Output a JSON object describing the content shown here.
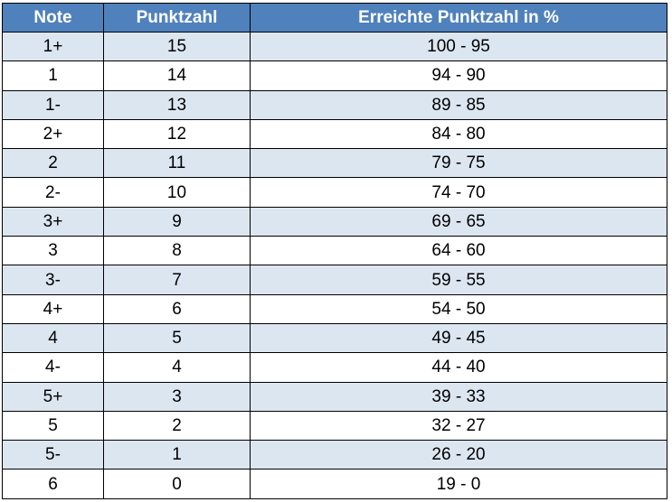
{
  "table": {
    "headers": [
      "Note",
      "Punktzahl",
      "Erreichte Punktzahl in %"
    ],
    "rows": [
      [
        "1+",
        "15",
        "100 - 95"
      ],
      [
        "1",
        "14",
        "94 - 90"
      ],
      [
        "1-",
        "13",
        "89 - 85"
      ],
      [
        "2+",
        "12",
        "84 - 80"
      ],
      [
        "2",
        "11",
        "79 - 75"
      ],
      [
        "2-",
        "10",
        "74 - 70"
      ],
      [
        "3+",
        "9",
        "69 - 65"
      ],
      [
        "3",
        "8",
        "64 - 60"
      ],
      [
        "3-",
        "7",
        "59 - 55"
      ],
      [
        "4+",
        "6",
        "54 - 50"
      ],
      [
        "4",
        "5",
        "49 - 45"
      ],
      [
        "4-",
        "4",
        "44 - 40"
      ],
      [
        "5+",
        "3",
        "39 - 33"
      ],
      [
        "5",
        "2",
        "32 - 27"
      ],
      [
        "5-",
        "1",
        "26 - 20"
      ],
      [
        "6",
        "0",
        "19 - 0"
      ]
    ]
  },
  "colors": {
    "header_background": "#4f81bd",
    "header_text": "#ffffff",
    "band_row": "#dce6f1",
    "plain_row": "#ffffff",
    "border": "#000000"
  }
}
